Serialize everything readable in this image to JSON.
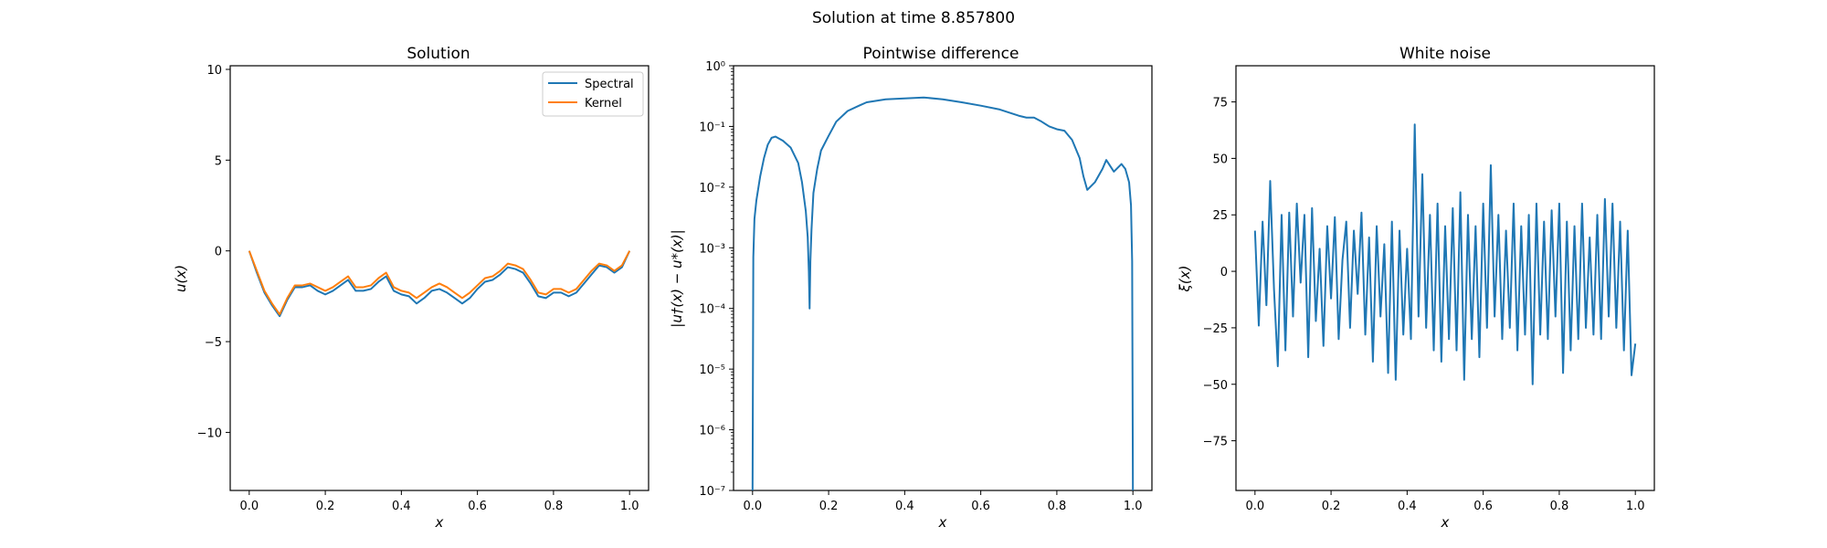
{
  "suptitle": "Solution at time 8.857800",
  "colors": {
    "spectral": "#1f77b4",
    "kernel": "#ff7f0e",
    "noise": "#1f77b4",
    "difference": "#1f77b4"
  },
  "chart_data": [
    {
      "type": "line",
      "title": "Solution",
      "xlabel": "x",
      "ylabel": "u(x)",
      "xlim": [
        -0.05,
        1.05
      ],
      "ylim": [
        -13.2,
        10.2
      ],
      "xticks": [
        "0.0",
        "0.2",
        "0.4",
        "0.6",
        "0.8",
        "1.0"
      ],
      "yticks": [
        "10",
        "5",
        "0",
        "−5",
        "−10"
      ],
      "yticks_values": [
        10,
        5,
        0,
        -5,
        -10
      ],
      "legend": "top-right",
      "x": [
        0.0,
        0.02,
        0.04,
        0.06,
        0.08,
        0.1,
        0.12,
        0.14,
        0.16,
        0.18,
        0.2,
        0.22,
        0.24,
        0.26,
        0.28,
        0.3,
        0.32,
        0.34,
        0.36,
        0.38,
        0.4,
        0.42,
        0.44,
        0.46,
        0.48,
        0.5,
        0.52,
        0.54,
        0.56,
        0.58,
        0.6,
        0.62,
        0.64,
        0.66,
        0.68,
        0.7,
        0.72,
        0.74,
        0.76,
        0.78,
        0.8,
        0.82,
        0.84,
        0.86,
        0.88,
        0.9,
        0.92,
        0.94,
        0.96,
        0.98,
        1.0
      ],
      "series": [
        {
          "name": "Spectral",
          "values": [
            0.0,
            -1.2,
            -2.3,
            -3.0,
            -3.6,
            -2.7,
            -2.0,
            -2.0,
            -1.9,
            -2.2,
            -2.4,
            -2.2,
            -1.9,
            -1.6,
            -2.2,
            -2.2,
            -2.1,
            -1.7,
            -1.4,
            -2.2,
            -2.4,
            -2.5,
            -2.9,
            -2.6,
            -2.2,
            -2.1,
            -2.3,
            -2.6,
            -2.9,
            -2.6,
            -2.1,
            -1.7,
            -1.6,
            -1.3,
            -0.9,
            -1.0,
            -1.2,
            -1.8,
            -2.5,
            -2.6,
            -2.3,
            -2.3,
            -2.5,
            -2.3,
            -1.8,
            -1.3,
            -0.8,
            -0.9,
            -1.2,
            -0.9,
            0.0
          ]
        },
        {
          "name": "Kernel",
          "values": [
            0.0,
            -1.1,
            -2.2,
            -2.9,
            -3.5,
            -2.6,
            -1.9,
            -1.9,
            -1.8,
            -2.0,
            -2.2,
            -2.0,
            -1.7,
            -1.4,
            -2.0,
            -2.0,
            -1.9,
            -1.5,
            -1.2,
            -2.0,
            -2.2,
            -2.3,
            -2.6,
            -2.3,
            -2.0,
            -1.8,
            -2.0,
            -2.3,
            -2.6,
            -2.3,
            -1.9,
            -1.5,
            -1.4,
            -1.1,
            -0.7,
            -0.8,
            -1.0,
            -1.6,
            -2.3,
            -2.4,
            -2.1,
            -2.1,
            -2.3,
            -2.1,
            -1.6,
            -1.1,
            -0.7,
            -0.8,
            -1.1,
            -0.8,
            0.0
          ]
        }
      ]
    },
    {
      "type": "line",
      "title": "Pointwise difference",
      "xlabel": "x",
      "ylabel": "|u†(x) − u*(x)|",
      "yscale": "log",
      "xlim": [
        -0.05,
        1.05
      ],
      "ylim": [
        1e-07,
        1
      ],
      "xticks": [
        "0.0",
        "0.2",
        "0.4",
        "0.6",
        "0.8",
        "1.0"
      ],
      "yticks": [
        "10⁰",
        "10⁻¹",
        "10⁻²",
        "10⁻³",
        "10⁻⁴",
        "10⁻⁵",
        "10⁻⁶",
        "10⁻⁷"
      ],
      "yticks_values": [
        1,
        0.1,
        0.01,
        0.001,
        0.0001,
        1e-05,
        1e-06,
        1e-07
      ],
      "x": [
        0.0,
        0.002,
        0.005,
        0.01,
        0.02,
        0.03,
        0.04,
        0.05,
        0.06,
        0.08,
        0.1,
        0.12,
        0.13,
        0.14,
        0.145,
        0.148,
        0.15,
        0.152,
        0.155,
        0.16,
        0.17,
        0.18,
        0.2,
        0.22,
        0.25,
        0.28,
        0.3,
        0.35,
        0.4,
        0.45,
        0.5,
        0.55,
        0.6,
        0.65,
        0.7,
        0.72,
        0.74,
        0.76,
        0.78,
        0.8,
        0.82,
        0.84,
        0.86,
        0.87,
        0.88,
        0.9,
        0.92,
        0.93,
        0.95,
        0.97,
        0.98,
        0.99,
        0.995,
        0.998,
        1.0
      ],
      "series": [
        {
          "name": "",
          "values": [
            1e-07,
            0.0007,
            0.003,
            0.006,
            0.015,
            0.03,
            0.05,
            0.065,
            0.068,
            0.058,
            0.045,
            0.025,
            0.012,
            0.004,
            0.0015,
            0.0004,
            0.0001,
            0.0006,
            0.002,
            0.008,
            0.02,
            0.04,
            0.07,
            0.12,
            0.18,
            0.22,
            0.25,
            0.28,
            0.29,
            0.3,
            0.28,
            0.25,
            0.22,
            0.19,
            0.15,
            0.14,
            0.14,
            0.12,
            0.1,
            0.09,
            0.085,
            0.06,
            0.03,
            0.015,
            0.009,
            0.012,
            0.02,
            0.028,
            0.018,
            0.024,
            0.02,
            0.012,
            0.005,
            0.0006,
            1e-07
          ]
        }
      ]
    },
    {
      "type": "line",
      "title": "White noise",
      "xlabel": "x",
      "ylabel": "ξ(x)",
      "xlim": [
        -0.05,
        1.05
      ],
      "ylim": [
        -97,
        91
      ],
      "xticks": [
        "0.0",
        "0.2",
        "0.4",
        "0.6",
        "0.8",
        "1.0"
      ],
      "yticks": [
        "75",
        "50",
        "25",
        "0",
        "−25",
        "−50",
        "−75"
      ],
      "yticks_values": [
        75,
        50,
        25,
        0,
        -25,
        -50,
        -75
      ],
      "x": [
        0.0,
        0.01,
        0.02,
        0.03,
        0.04,
        0.05,
        0.06,
        0.07,
        0.08,
        0.09,
        0.1,
        0.11,
        0.12,
        0.13,
        0.14,
        0.15,
        0.16,
        0.17,
        0.18,
        0.19,
        0.2,
        0.21,
        0.22,
        0.23,
        0.24,
        0.25,
        0.26,
        0.27,
        0.28,
        0.29,
        0.3,
        0.31,
        0.32,
        0.33,
        0.34,
        0.35,
        0.36,
        0.37,
        0.38,
        0.39,
        0.4,
        0.41,
        0.42,
        0.43,
        0.44,
        0.45,
        0.46,
        0.47,
        0.48,
        0.49,
        0.5,
        0.51,
        0.52,
        0.53,
        0.54,
        0.55,
        0.56,
        0.57,
        0.58,
        0.59,
        0.6,
        0.61,
        0.62,
        0.63,
        0.64,
        0.65,
        0.66,
        0.67,
        0.68,
        0.69,
        0.7,
        0.71,
        0.72,
        0.73,
        0.74,
        0.75,
        0.76,
        0.77,
        0.78,
        0.79,
        0.8,
        0.81,
        0.82,
        0.83,
        0.84,
        0.85,
        0.86,
        0.87,
        0.88,
        0.89,
        0.9,
        0.91,
        0.92,
        0.93,
        0.94,
        0.95,
        0.96,
        0.97,
        0.98,
        0.99,
        1.0
      ],
      "series": [
        {
          "name": "",
          "values": [
            18,
            -24,
            22,
            -15,
            40,
            -8,
            -42,
            25,
            -35,
            26,
            -20,
            30,
            -5,
            25,
            -38,
            28,
            -22,
            10,
            -33,
            20,
            -12,
            24,
            -30,
            5,
            22,
            -25,
            18,
            -10,
            26,
            -28,
            15,
            -40,
            20,
            -20,
            12,
            -45,
            22,
            -48,
            18,
            -28,
            10,
            -30,
            65,
            -20,
            43,
            -25,
            25,
            -35,
            30,
            -40,
            20,
            -30,
            28,
            -35,
            35,
            -48,
            25,
            -30,
            20,
            -38,
            30,
            -25,
            47,
            -20,
            25,
            -30,
            18,
            -25,
            30,
            -35,
            20,
            -28,
            25,
            -50,
            30,
            -28,
            22,
            -30,
            27,
            -20,
            30,
            -45,
            22,
            -35,
            20,
            -30,
            30,
            -25,
            15,
            -28,
            25,
            -30,
            32,
            -20,
            30,
            -25,
            22,
            -35,
            18,
            -46,
            -32
          ]
        }
      ]
    }
  ]
}
